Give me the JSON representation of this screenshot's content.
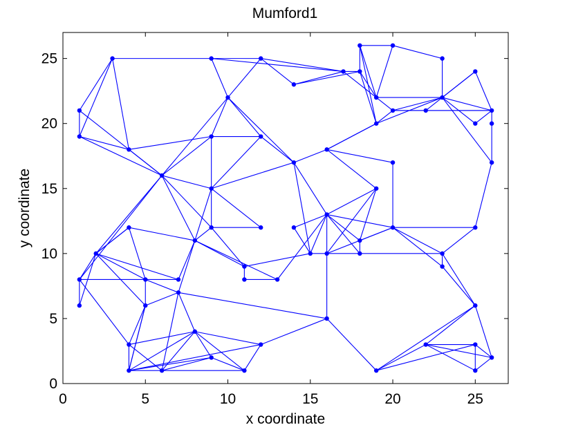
{
  "chart_data": {
    "type": "scatter",
    "title": "Mumford1",
    "xlabel": "x coordinate",
    "ylabel": "y coordinate",
    "xlim": [
      0,
      27
    ],
    "ylim": [
      0,
      27
    ],
    "x_ticks": [
      0,
      5,
      10,
      15,
      20,
      25
    ],
    "y_ticks": [
      0,
      5,
      10,
      15,
      20,
      25
    ],
    "x_tick_labels": [
      "0",
      "5",
      "10",
      "15",
      "20",
      "25"
    ],
    "y_tick_labels": [
      "0",
      "5",
      "10",
      "15",
      "20",
      "25"
    ],
    "grid": false,
    "line_color": "#0000ff",
    "marker_color": "#0000ff",
    "nodes": [
      [
        1,
        21
      ],
      [
        1,
        19
      ],
      [
        3,
        25
      ],
      [
        4,
        18
      ],
      [
        6,
        16
      ],
      [
        9,
        25
      ],
      [
        12,
        25
      ],
      [
        10,
        22
      ],
      [
        9,
        19
      ],
      [
        12,
        19
      ],
      [
        14,
        23
      ],
      [
        17,
        24
      ],
      [
        18,
        24
      ],
      [
        18,
        26
      ],
      [
        20,
        26
      ],
      [
        19,
        22
      ],
      [
        19,
        20
      ],
      [
        20,
        21
      ],
      [
        23,
        25
      ],
      [
        23,
        22
      ],
      [
        22,
        21
      ],
      [
        25,
        24
      ],
      [
        26,
        21
      ],
      [
        26,
        20
      ],
      [
        25,
        20
      ],
      [
        26,
        17
      ],
      [
        16,
        18
      ],
      [
        14,
        17
      ],
      [
        9,
        15
      ],
      [
        2,
        10
      ],
      [
        1,
        8
      ],
      [
        1,
        6
      ],
      [
        4,
        12
      ],
      [
        5,
        8
      ],
      [
        5,
        6
      ],
      [
        7,
        8
      ],
      [
        7,
        7
      ],
      [
        8,
        11
      ],
      [
        9,
        12
      ],
      [
        12,
        12
      ],
      [
        11,
        9
      ],
      [
        11,
        8
      ],
      [
        13,
        8
      ],
      [
        14,
        12
      ],
      [
        16,
        13
      ],
      [
        15,
        10
      ],
      [
        16,
        10
      ],
      [
        18,
        10
      ],
      [
        18,
        11
      ],
      [
        19,
        15
      ],
      [
        20,
        12
      ],
      [
        20,
        17
      ],
      [
        25,
        12
      ],
      [
        23,
        10
      ],
      [
        23,
        9
      ],
      [
        25,
        6
      ],
      [
        16,
        5
      ],
      [
        4,
        3
      ],
      [
        4,
        1
      ],
      [
        6,
        1
      ],
      [
        8,
        4
      ],
      [
        9,
        2
      ],
      [
        11,
        1
      ],
      [
        12,
        3
      ],
      [
        19,
        1
      ],
      [
        22,
        3
      ],
      [
        25,
        3
      ],
      [
        26,
        2
      ],
      [
        25,
        1
      ]
    ],
    "edges": [
      [
        0,
        1
      ],
      [
        0,
        2
      ],
      [
        0,
        4
      ],
      [
        1,
        2
      ],
      [
        1,
        3
      ],
      [
        1,
        4
      ],
      [
        2,
        3
      ],
      [
        2,
        5
      ],
      [
        3,
        4
      ],
      [
        3,
        8
      ],
      [
        4,
        8
      ],
      [
        4,
        28
      ],
      [
        4,
        7
      ],
      [
        4,
        29
      ],
      [
        4,
        30
      ],
      [
        4,
        37
      ],
      [
        4,
        38
      ],
      [
        5,
        6
      ],
      [
        5,
        7
      ],
      [
        5,
        11
      ],
      [
        6,
        7
      ],
      [
        6,
        10
      ],
      [
        6,
        11
      ],
      [
        7,
        8
      ],
      [
        7,
        27
      ],
      [
        7,
        9
      ],
      [
        8,
        9
      ],
      [
        8,
        28
      ],
      [
        9,
        27
      ],
      [
        9,
        28
      ],
      [
        10,
        11
      ],
      [
        10,
        12
      ],
      [
        11,
        12
      ],
      [
        11,
        15
      ],
      [
        12,
        13
      ],
      [
        12,
        15
      ],
      [
        12,
        16
      ],
      [
        13,
        14
      ],
      [
        13,
        15
      ],
      [
        13,
        16
      ],
      [
        14,
        15
      ],
      [
        14,
        18
      ],
      [
        15,
        17
      ],
      [
        15,
        19
      ],
      [
        16,
        17
      ],
      [
        16,
        26
      ],
      [
        16,
        19
      ],
      [
        17,
        19
      ],
      [
        17,
        20
      ],
      [
        17,
        22
      ],
      [
        18,
        19
      ],
      [
        19,
        20
      ],
      [
        19,
        21
      ],
      [
        19,
        22
      ],
      [
        19,
        24
      ],
      [
        20,
        22
      ],
      [
        21,
        22
      ],
      [
        21,
        19
      ],
      [
        22,
        23
      ],
      [
        22,
        24
      ],
      [
        23,
        25
      ],
      [
        19,
        25
      ],
      [
        25,
        52
      ],
      [
        26,
        16
      ],
      [
        26,
        27
      ],
      [
        26,
        51
      ],
      [
        26,
        49
      ],
      [
        27,
        28
      ],
      [
        27,
        44
      ],
      [
        27,
        45
      ],
      [
        28,
        38
      ],
      [
        28,
        39
      ],
      [
        28,
        37
      ],
      [
        29,
        30
      ],
      [
        29,
        31
      ],
      [
        29,
        32
      ],
      [
        29,
        33
      ],
      [
        29,
        35
      ],
      [
        29,
        34
      ],
      [
        30,
        33
      ],
      [
        30,
        31
      ],
      [
        30,
        57
      ],
      [
        32,
        33
      ],
      [
        32,
        37
      ],
      [
        32,
        29
      ],
      [
        33,
        34
      ],
      [
        33,
        35
      ],
      [
        33,
        36
      ],
      [
        34,
        36
      ],
      [
        34,
        58
      ],
      [
        34,
        57
      ],
      [
        35,
        37
      ],
      [
        36,
        37
      ],
      [
        36,
        59
      ],
      [
        36,
        60
      ],
      [
        37,
        38
      ],
      [
        37,
        40
      ],
      [
        37,
        42
      ],
      [
        38,
        39
      ],
      [
        38,
        40
      ],
      [
        40,
        45
      ],
      [
        40,
        41
      ],
      [
        41,
        42
      ],
      [
        42,
        44
      ],
      [
        43,
        44
      ],
      [
        43,
        45
      ],
      [
        44,
        45
      ],
      [
        44,
        46
      ],
      [
        44,
        47
      ],
      [
        44,
        48
      ],
      [
        44,
        50
      ],
      [
        45,
        46
      ],
      [
        46,
        47
      ],
      [
        46,
        50
      ],
      [
        47,
        48
      ],
      [
        48,
        50
      ],
      [
        48,
        49
      ],
      [
        49,
        44
      ],
      [
        49,
        46
      ],
      [
        50,
        51
      ],
      [
        50,
        52
      ],
      [
        50,
        53
      ],
      [
        50,
        54
      ],
      [
        47,
        53
      ],
      [
        52,
        53
      ],
      [
        53,
        54
      ],
      [
        54,
        55
      ],
      [
        53,
        55
      ],
      [
        55,
        67
      ],
      [
        55,
        65
      ],
      [
        55,
        64
      ],
      [
        56,
        46
      ],
      [
        56,
        36
      ],
      [
        56,
        63
      ],
      [
        56,
        64
      ],
      [
        57,
        58
      ],
      [
        57,
        59
      ],
      [
        57,
        60
      ],
      [
        58,
        59
      ],
      [
        58,
        60
      ],
      [
        58,
        61
      ],
      [
        59,
        60
      ],
      [
        59,
        61
      ],
      [
        59,
        62
      ],
      [
        60,
        61
      ],
      [
        60,
        62
      ],
      [
        60,
        63
      ],
      [
        61,
        62
      ],
      [
        62,
        63
      ],
      [
        64,
        65
      ],
      [
        64,
        66
      ],
      [
        65,
        66
      ],
      [
        65,
        67
      ],
      [
        66,
        67
      ],
      [
        66,
        68
      ],
      [
        67,
        68
      ],
      [
        68,
        65
      ],
      [
        58,
        34
      ],
      [
        63,
        58
      ]
    ]
  }
}
